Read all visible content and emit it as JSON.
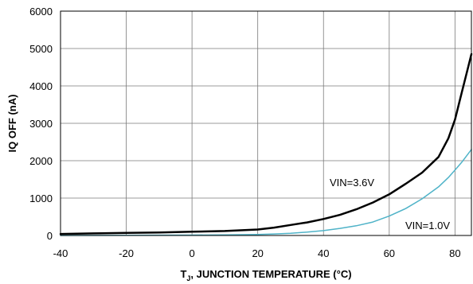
{
  "chart_data": {
    "type": "line",
    "title": "",
    "xlabel_main": "T",
    "xlabel_sub": "J",
    "xlabel_rest": ", JUNCTION TEMPERATURE (°C)",
    "ylabel": "IQ OFF (nA)",
    "xlim": [
      -40,
      85
    ],
    "ylim": [
      0,
      6000
    ],
    "x_ticks": [
      "-40",
      "-20",
      "0",
      "20",
      "40",
      "60",
      "80"
    ],
    "y_ticks": [
      "0",
      "1000",
      "2000",
      "3000",
      "4000",
      "5000",
      "6000"
    ],
    "grid": true,
    "line_color_vin36": "#000000",
    "line_color_vin10": "#4fb3c8",
    "series": [
      {
        "name": "VIN=3.6V",
        "x": [
          -40,
          -30,
          -20,
          -10,
          0,
          10,
          20,
          25,
          30,
          35,
          40,
          45,
          50,
          55,
          60,
          65,
          70,
          75,
          78,
          80,
          82,
          84,
          85
        ],
        "y": [
          40,
          55,
          70,
          80,
          100,
          120,
          160,
          210,
          280,
          350,
          440,
          550,
          700,
          880,
          1100,
          1380,
          1680,
          2100,
          2600,
          3100,
          3800,
          4500,
          4850
        ]
      },
      {
        "name": "VIN=1.0V",
        "x": [
          -40,
          -20,
          0,
          10,
          20,
          25,
          30,
          35,
          40,
          45,
          50,
          55,
          60,
          65,
          70,
          75,
          78,
          80,
          82,
          85
        ],
        "y": [
          0,
          5,
          10,
          15,
          25,
          40,
          60,
          90,
          130,
          190,
          260,
          360,
          520,
          720,
          980,
          1300,
          1550,
          1750,
          1950,
          2300
        ]
      }
    ]
  }
}
